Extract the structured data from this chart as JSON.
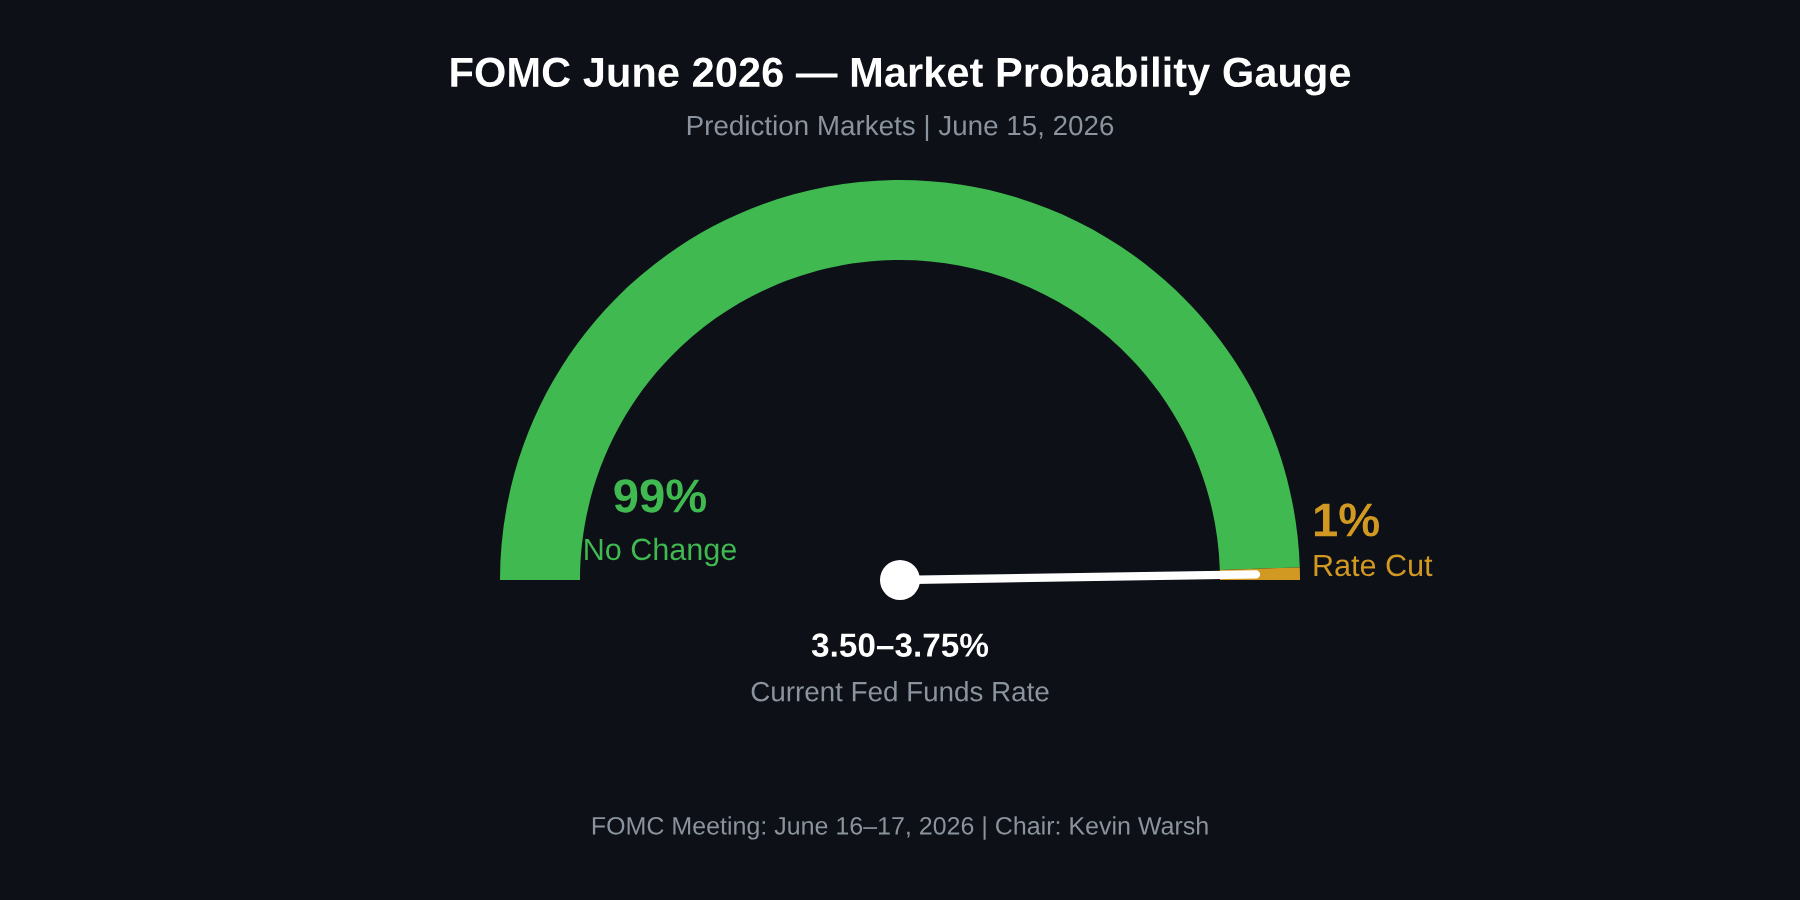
{
  "chart_data": {
    "type": "donut",
    "title": "FOMC June 2026 — Market Probability Gauge",
    "subtitle": "Prediction Markets | June 15, 2026",
    "categories": [
      "No Change",
      "Rate Cut"
    ],
    "values": [
      99,
      1
    ],
    "colors": [
      "#3fb950",
      "#d29922"
    ],
    "value_labels": [
      "99%",
      "1%"
    ],
    "needle": "Rate Cut",
    "annotations": [
      "3.50–3.75%",
      "Current Fed Funds Rate",
      "FOMC Meeting: June 16–17, 2026 | Chair: Kevin Warsh"
    ]
  }
}
